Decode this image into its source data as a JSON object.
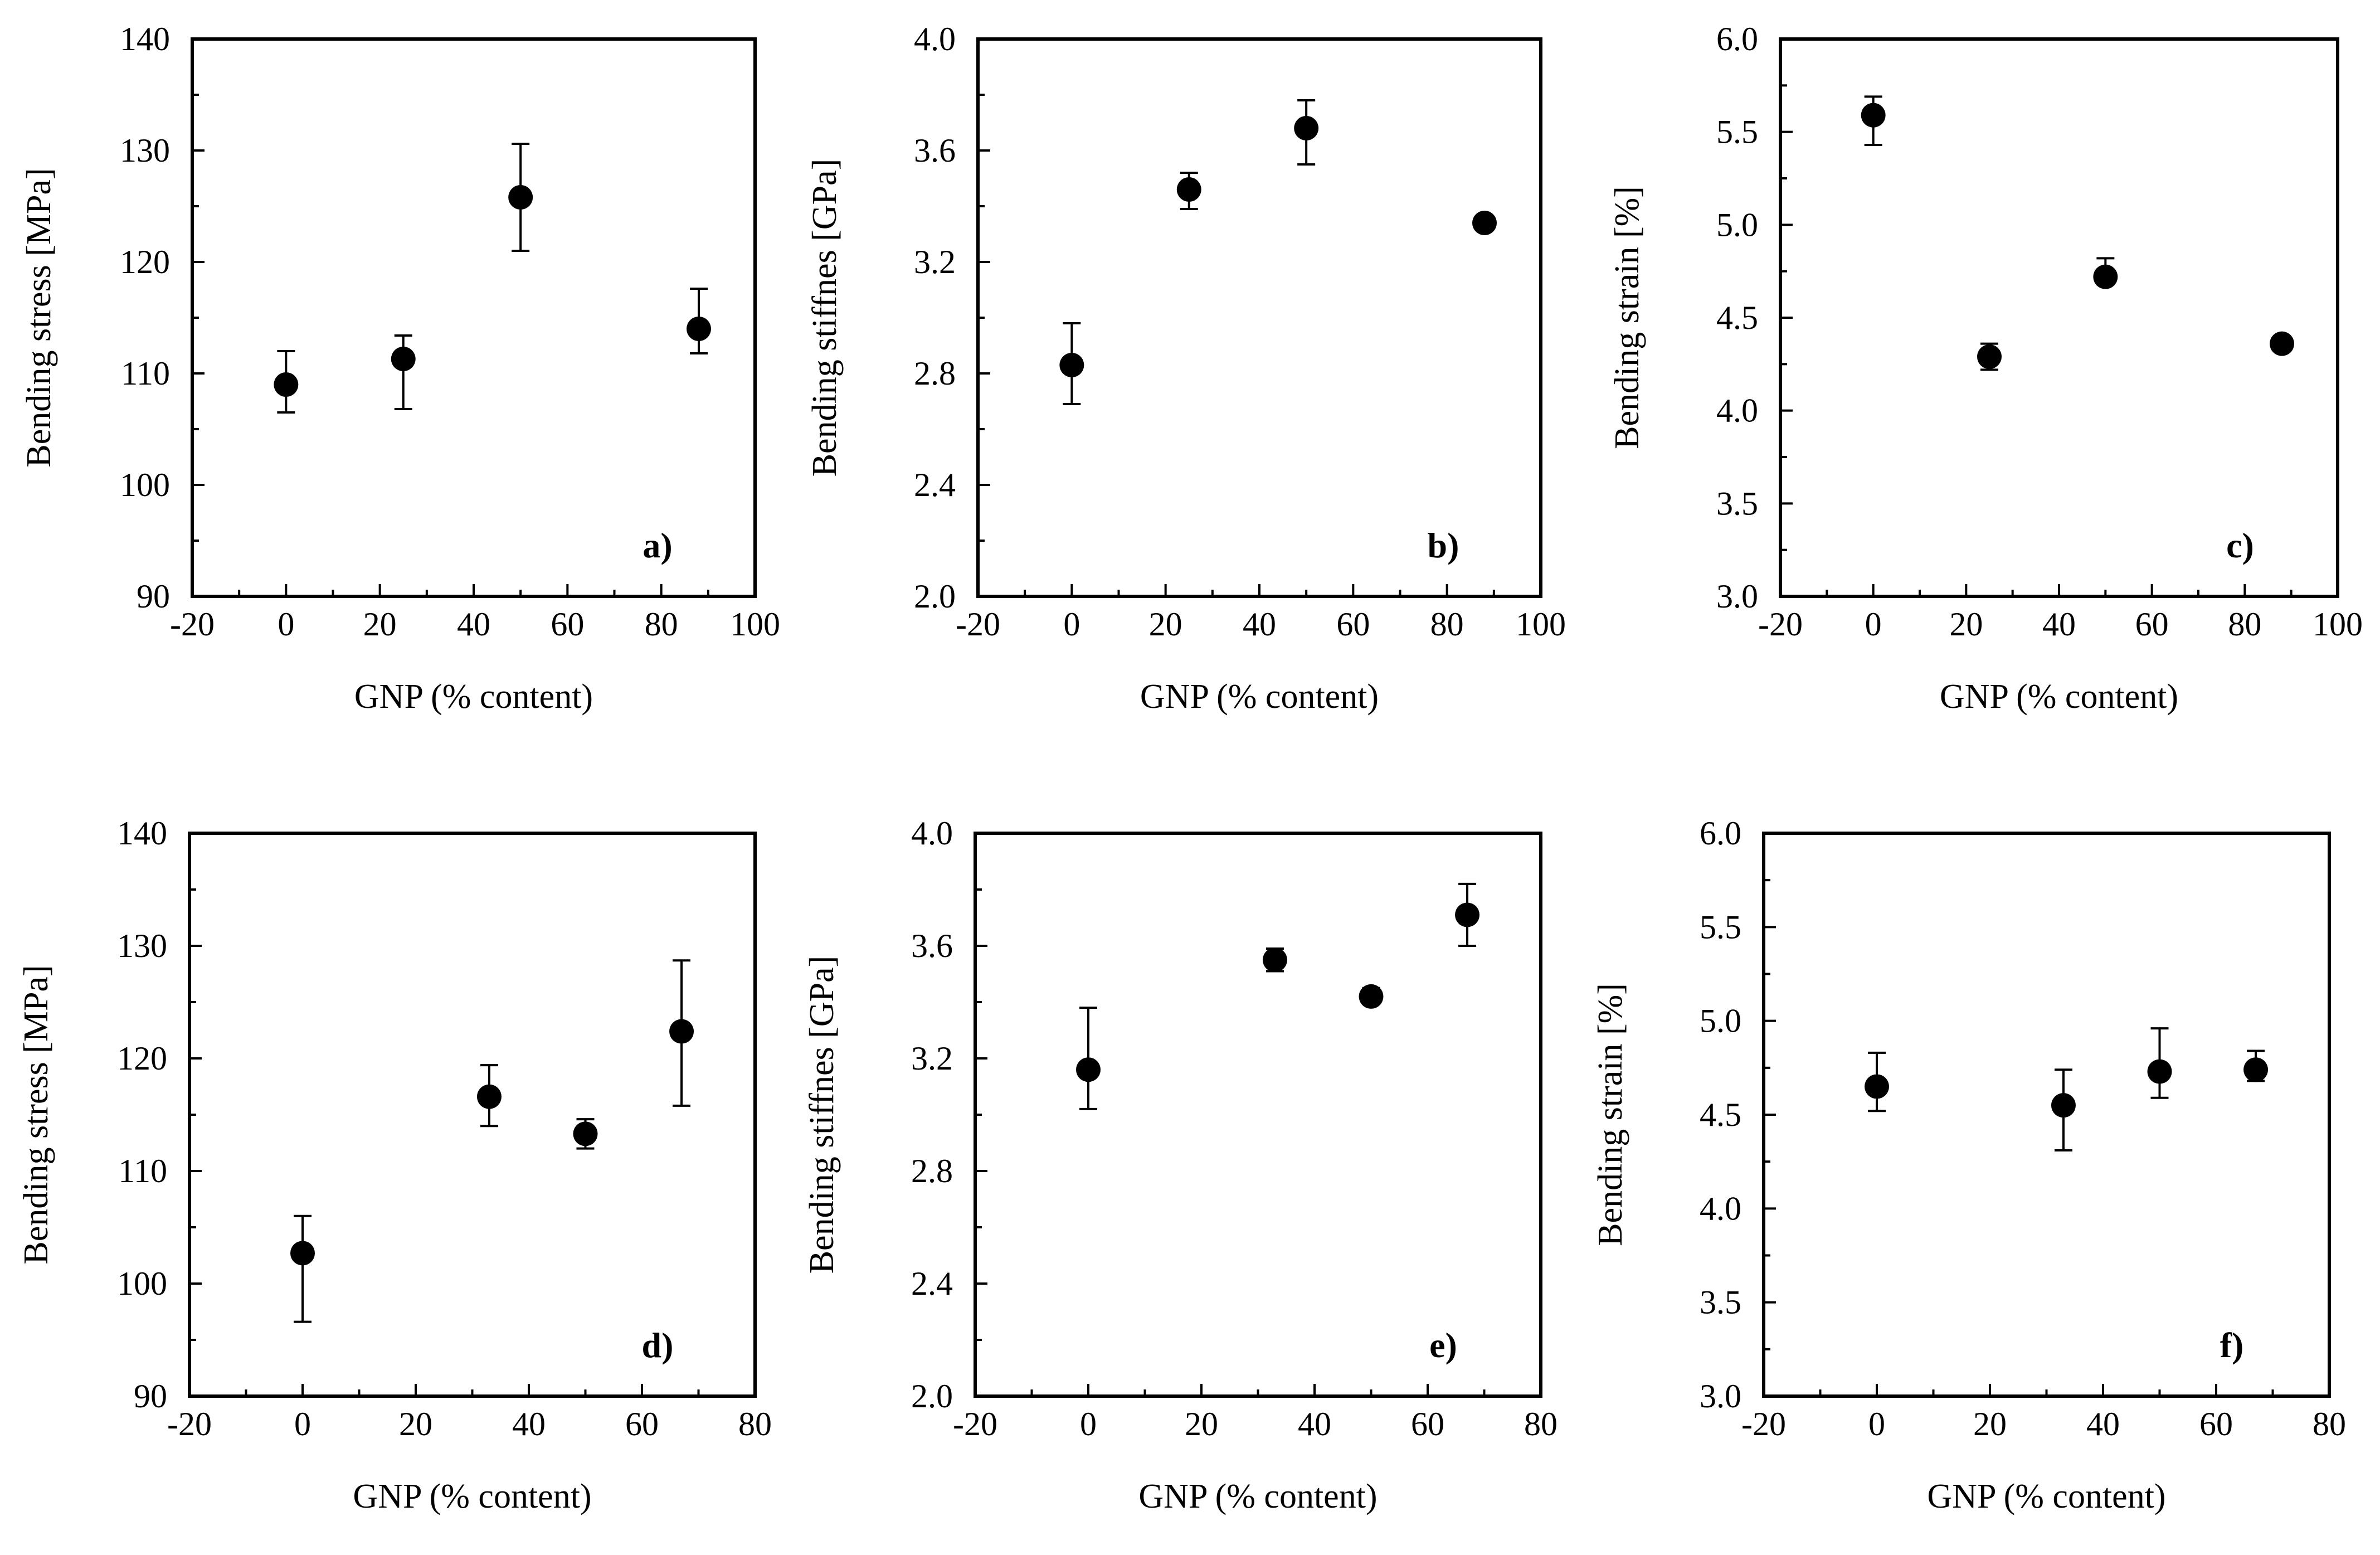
{
  "chart_data": [
    {
      "id": "a",
      "type": "scatter",
      "panel_label": "a)",
      "xlabel": "GNP (% content)",
      "ylabel": "Bending stress [MPa]",
      "xlim": [
        -20,
        100
      ],
      "ylim": [
        90,
        140
      ],
      "xticks": [
        -20,
        0,
        20,
        40,
        60,
        80,
        100
      ],
      "yticks": [
        90,
        100,
        110,
        120,
        130,
        140
      ],
      "x_tick_labels": [
        "-20",
        "0",
        "20",
        "40",
        "60",
        "80",
        "100"
      ],
      "y_tick_labels": [
        "90",
        "100",
        "110",
        "120",
        "130",
        "140"
      ],
      "x_minor_step": 10,
      "y_minor_step": 5,
      "points": [
        {
          "x": 0,
          "y": 109.0,
          "err_low": 106.5,
          "err_high": 112.0
        },
        {
          "x": 25,
          "y": 111.3,
          "err_low": 106.8,
          "err_high": 113.4
        },
        {
          "x": 50,
          "y": 125.8,
          "err_low": 121.0,
          "err_high": 130.6
        },
        {
          "x": 88,
          "y": 114.0,
          "err_low": 111.8,
          "err_high": 117.6
        }
      ]
    },
    {
      "id": "b",
      "type": "scatter",
      "panel_label": "b)",
      "xlabel": "GNP (% content)",
      "ylabel": "Bending stiffnes [GPa]",
      "xlim": [
        -20,
        100
      ],
      "ylim": [
        2.0,
        4.0
      ],
      "xticks": [
        -20,
        0,
        20,
        40,
        60,
        80,
        100
      ],
      "yticks": [
        2.0,
        2.4,
        2.8,
        3.2,
        3.6,
        4.0
      ],
      "x_tick_labels": [
        "-20",
        "0",
        "20",
        "40",
        "60",
        "80",
        "100"
      ],
      "y_tick_labels": [
        "2.0",
        "2.4",
        "2.8",
        "3.2",
        "3.6",
        "4.0"
      ],
      "x_minor_step": 10,
      "y_minor_step": 0.2,
      "points": [
        {
          "x": 0,
          "y": 2.83,
          "err_low": 2.69,
          "err_high": 2.98
        },
        {
          "x": 25,
          "y": 3.46,
          "err_low": 3.39,
          "err_high": 3.52
        },
        {
          "x": 50,
          "y": 3.68,
          "err_low": 3.55,
          "err_high": 3.78
        },
        {
          "x": 88,
          "y": 3.34,
          "err_low": 3.33,
          "err_high": 3.35
        }
      ]
    },
    {
      "id": "c",
      "type": "scatter",
      "panel_label": "c)",
      "xlabel": "GNP (% content)",
      "ylabel": "Bending strain [%]",
      "xlim": [
        -20,
        100
      ],
      "ylim": [
        3.0,
        6.0
      ],
      "xticks": [
        -20,
        0,
        20,
        40,
        60,
        80,
        100
      ],
      "yticks": [
        3.0,
        3.5,
        4.0,
        4.5,
        5.0,
        5.5,
        6.0
      ],
      "x_tick_labels": [
        "-20",
        "0",
        "20",
        "40",
        "60",
        "80",
        "100"
      ],
      "y_tick_labels": [
        "3.0",
        "3.5",
        "4.0",
        "4.5",
        "5.0",
        "5.5",
        "6.0"
      ],
      "x_minor_step": 10,
      "y_minor_step": 0.25,
      "points": [
        {
          "x": 0,
          "y": 5.59,
          "err_low": 5.43,
          "err_high": 5.69
        },
        {
          "x": 25,
          "y": 4.29,
          "err_low": 4.22,
          "err_high": 4.36
        },
        {
          "x": 50,
          "y": 4.72,
          "err_low": 4.69,
          "err_high": 4.82
        },
        {
          "x": 88,
          "y": 4.36,
          "err_low": 4.34,
          "err_high": 4.38
        }
      ]
    },
    {
      "id": "d",
      "type": "scatter",
      "panel_label": "d)",
      "xlabel": "GNP (% content)",
      "ylabel": "Bending stress [MPa]",
      "xlim": [
        -20,
        80
      ],
      "ylim": [
        90,
        140
      ],
      "xticks": [
        -20,
        0,
        20,
        40,
        60,
        80
      ],
      "yticks": [
        90,
        100,
        110,
        120,
        130,
        140
      ],
      "x_tick_labels": [
        "-20",
        "0",
        "20",
        "40",
        "60",
        "80"
      ],
      "y_tick_labels": [
        "90",
        "100",
        "110",
        "120",
        "130",
        "140"
      ],
      "x_minor_step": 10,
      "y_minor_step": 5,
      "points": [
        {
          "x": 0,
          "y": 102.7,
          "err_low": 96.6,
          "err_high": 106.0
        },
        {
          "x": 33,
          "y": 116.6,
          "err_low": 114.0,
          "err_high": 119.4
        },
        {
          "x": 50,
          "y": 113.3,
          "err_low": 112.0,
          "err_high": 114.6
        },
        {
          "x": 67,
          "y": 122.4,
          "err_low": 115.8,
          "err_high": 128.7
        }
      ]
    },
    {
      "id": "e",
      "type": "scatter",
      "panel_label": "e)",
      "xlabel": "GNP (% content)",
      "ylabel": "Bending stiffnes [GPa]",
      "xlim": [
        -20,
        80
      ],
      "ylim": [
        2.0,
        4.0
      ],
      "xticks": [
        -20,
        0,
        20,
        40,
        60,
        80
      ],
      "yticks": [
        2.0,
        2.4,
        2.8,
        3.2,
        3.6,
        4.0
      ],
      "x_tick_labels": [
        "-20",
        "0",
        "20",
        "40",
        "60",
        "80"
      ],
      "y_tick_labels": [
        "2.0",
        "2.4",
        "2.8",
        "3.2",
        "3.6",
        "4.0"
      ],
      "x_minor_step": 10,
      "y_minor_step": 0.2,
      "points": [
        {
          "x": 0,
          "y": 3.16,
          "err_low": 3.02,
          "err_high": 3.38
        },
        {
          "x": 33,
          "y": 3.55,
          "err_low": 3.51,
          "err_high": 3.59
        },
        {
          "x": 50,
          "y": 3.42,
          "err_low": 3.4,
          "err_high": 3.45
        },
        {
          "x": 67,
          "y": 3.71,
          "err_low": 3.6,
          "err_high": 3.82
        }
      ]
    },
    {
      "id": "f",
      "type": "scatter",
      "panel_label": "f)",
      "xlabel": "GNP (% content)",
      "ylabel": "Bending strain [%]",
      "xlim": [
        -20,
        80
      ],
      "ylim": [
        3.0,
        6.0
      ],
      "xticks": [
        -20,
        0,
        20,
        40,
        60,
        80
      ],
      "yticks": [
        3.0,
        3.5,
        4.0,
        4.5,
        5.0,
        5.5,
        6.0
      ],
      "x_tick_labels": [
        "-20",
        "0",
        "20",
        "40",
        "60",
        "80"
      ],
      "y_tick_labels": [
        "3.0",
        "3.5",
        "4.0",
        "4.5",
        "5.0",
        "5.5",
        "6.0"
      ],
      "x_minor_step": 10,
      "y_minor_step": 0.25,
      "points": [
        {
          "x": 0,
          "y": 4.65,
          "err_low": 4.52,
          "err_high": 4.83
        },
        {
          "x": 33,
          "y": 4.55,
          "err_low": 4.31,
          "err_high": 4.74
        },
        {
          "x": 50,
          "y": 4.73,
          "err_low": 4.59,
          "err_high": 4.96
        },
        {
          "x": 67,
          "y": 4.74,
          "err_low": 4.68,
          "err_high": 4.84
        }
      ]
    }
  ]
}
